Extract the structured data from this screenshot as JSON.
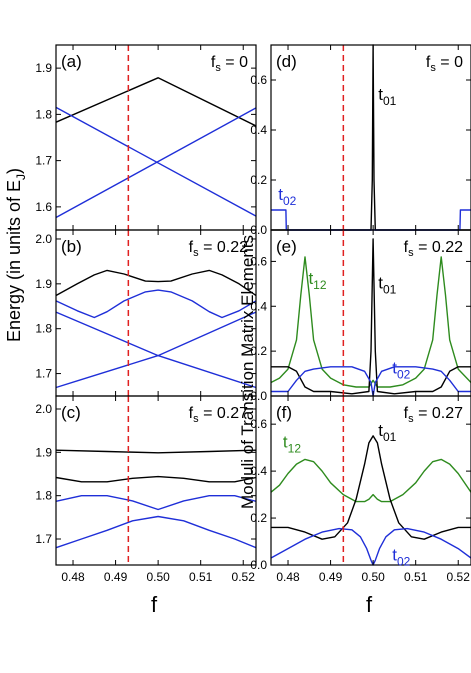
{
  "colors": {
    "black": "#000000",
    "blue": "#1f2fd8",
    "green": "#2e8b1e",
    "red": "#e02020"
  },
  "figure": {
    "left_ylabel": "Energy (in units of E",
    "left_ylabel_sub": "J",
    "left_ylabel_close": ")",
    "right_ylabel": "Moduli of Transition Matrix Elements",
    "xlabel_left": "f",
    "xlabel_right": "f"
  },
  "chart_data": [
    {
      "type": "line",
      "panel": "(a)",
      "fs_label": "f",
      "fs_sub": "s",
      "fs_value": " = 0",
      "xlim": [
        0.476,
        0.523
      ],
      "ylim": [
        1.55,
        1.95
      ],
      "yticks": [
        "1.6",
        "1.7",
        "1.8",
        "1.9"
      ],
      "ytick_values": [
        1.6,
        1.7,
        1.8,
        1.9
      ],
      "xticks": [],
      "xtick_values": [
        0.48,
        0.49,
        0.5,
        0.51,
        0.52
      ],
      "vline_x": 0.493,
      "series": [
        {
          "color": "black",
          "x": [
            0.476,
            0.5,
            0.523
          ],
          "y": [
            1.783,
            1.879,
            1.775
          ]
        },
        {
          "color": "blue",
          "x": [
            0.476,
            0.523
          ],
          "y": [
            1.815,
            1.58
          ]
        },
        {
          "color": "blue",
          "x": [
            0.476,
            0.523
          ],
          "y": [
            1.577,
            1.814
          ]
        }
      ]
    },
    {
      "type": "line",
      "panel": "(b)",
      "fs_label": "f",
      "fs_sub": "s",
      "fs_value": " = 0.22",
      "xlim": [
        0.476,
        0.523
      ],
      "ylim": [
        1.65,
        2.02
      ],
      "yticks": [
        "1.7",
        "1.8",
        "1.9",
        "2.0"
      ],
      "ytick_values": [
        1.7,
        1.8,
        1.9,
        2.0
      ],
      "xticks": [],
      "xtick_values": [
        0.48,
        0.49,
        0.5,
        0.51,
        0.52
      ],
      "vline_x": 0.493,
      "series": [
        {
          "color": "black",
          "x": [
            0.476,
            0.481,
            0.485,
            0.488,
            0.492,
            0.497,
            0.5,
            0.503,
            0.508,
            0.512,
            0.515,
            0.519,
            0.523
          ],
          "y": [
            1.874,
            1.9,
            1.92,
            1.93,
            1.922,
            1.906,
            1.905,
            1.906,
            1.922,
            1.93,
            1.92,
            1.9,
            1.874
          ]
        },
        {
          "color": "blue",
          "x": [
            0.476,
            0.481,
            0.485,
            0.488,
            0.492,
            0.497,
            0.5,
            0.503,
            0.508,
            0.512,
            0.515,
            0.519,
            0.523
          ],
          "y": [
            1.862,
            1.84,
            1.825,
            1.838,
            1.862,
            1.882,
            1.886,
            1.882,
            1.862,
            1.838,
            1.825,
            1.84,
            1.862
          ]
        },
        {
          "color": "blue",
          "x": [
            0.476,
            0.5,
            0.523
          ],
          "y": [
            1.837,
            1.74,
            1.669
          ]
        },
        {
          "color": "blue",
          "x": [
            0.476,
            0.5,
            0.523
          ],
          "y": [
            1.669,
            1.74,
            1.837
          ]
        }
      ]
    },
    {
      "type": "line",
      "panel": "(c)",
      "fs_label": "f",
      "fs_sub": "s",
      "fs_value": " = 0.27",
      "xlim": [
        0.476,
        0.523
      ],
      "ylim": [
        1.64,
        2.03
      ],
      "yticks": [
        "1.7",
        "1.8",
        "1.9",
        "2.0"
      ],
      "ytick_values": [
        1.7,
        1.8,
        1.9,
        2.0
      ],
      "xticks": [
        "0.48",
        "0.49",
        "0.50",
        "0.51",
        "0.52"
      ],
      "xtick_values": [
        0.48,
        0.49,
        0.5,
        0.51,
        0.52
      ],
      "vline_x": 0.493,
      "series": [
        {
          "color": "black",
          "x": [
            0.476,
            0.488,
            0.5,
            0.512,
            0.523
          ],
          "y": [
            1.905,
            1.902,
            1.899,
            1.902,
            1.905
          ]
        },
        {
          "color": "black",
          "x": [
            0.476,
            0.482,
            0.488,
            0.494,
            0.5,
            0.506,
            0.512,
            0.518,
            0.523
          ],
          "y": [
            1.842,
            1.832,
            1.832,
            1.84,
            1.844,
            1.84,
            1.832,
            1.832,
            1.842
          ]
        },
        {
          "color": "blue",
          "x": [
            0.476,
            0.482,
            0.488,
            0.494,
            0.5,
            0.506,
            0.512,
            0.518,
            0.523
          ],
          "y": [
            1.787,
            1.8,
            1.8,
            1.788,
            1.768,
            1.788,
            1.8,
            1.8,
            1.787
          ]
        },
        {
          "color": "blue",
          "x": [
            0.476,
            0.482,
            0.488,
            0.494,
            0.5,
            0.506,
            0.512,
            0.518,
            0.523
          ],
          "y": [
            1.68,
            1.7,
            1.72,
            1.742,
            1.752,
            1.742,
            1.72,
            1.7,
            1.68
          ]
        }
      ]
    },
    {
      "type": "line",
      "panel": "(d)",
      "fs_label": "f",
      "fs_sub": "s",
      "fs_value": " = 0",
      "xlim": [
        0.476,
        0.523
      ],
      "ylim": [
        0.0,
        0.74
      ],
      "yticks": [
        "0.0",
        "0.2",
        "0.4",
        "0.6"
      ],
      "ytick_values": [
        0.0,
        0.2,
        0.4,
        0.6
      ],
      "xticks": [],
      "xtick_values": [
        0.48,
        0.49,
        0.5,
        0.51,
        0.52
      ],
      "vline_x": 0.493,
      "series": [
        {
          "color": "black",
          "x": [
            0.476,
            0.4995,
            0.4998,
            0.5,
            0.5002,
            0.5005,
            0.523
          ],
          "y": [
            0.0,
            0.0,
            0.2,
            0.74,
            0.2,
            0.0,
            0.0
          ]
        },
        {
          "color": "blue",
          "x": [
            0.476,
            0.4795,
            0.4796,
            0.5204,
            0.5205,
            0.523
          ],
          "y": [
            0.08,
            0.08,
            0.0,
            0.0,
            0.08,
            0.08
          ]
        }
      ],
      "labels": [
        {
          "base": "t",
          "sub": "01",
          "color": "black",
          "x": 0.5012,
          "y": 0.52
        },
        {
          "base": "t",
          "sub": "02",
          "color": "blue",
          "x": 0.4777,
          "y": 0.12
        }
      ]
    },
    {
      "type": "line",
      "panel": "(e)",
      "fs_label": "f",
      "fs_sub": "s",
      "fs_value": " = 0.22",
      "xlim": [
        0.476,
        0.523
      ],
      "ylim": [
        0.0,
        0.74
      ],
      "yticks": [
        "0.0",
        "0.2",
        "0.4",
        "0.6"
      ],
      "ytick_values": [
        0.0,
        0.2,
        0.4,
        0.6
      ],
      "xticks": [],
      "xtick_values": [
        0.48,
        0.49,
        0.5,
        0.51,
        0.52
      ],
      "vline_x": 0.493,
      "series": [
        {
          "color": "green",
          "x": [
            0.476,
            0.478,
            0.48,
            0.482,
            0.483,
            0.484,
            0.485,
            0.486,
            0.488,
            0.49,
            0.493,
            0.496,
            0.499,
            0.5,
            0.501,
            0.504,
            0.507,
            0.51,
            0.512,
            0.514,
            0.515,
            0.516,
            0.517,
            0.518,
            0.52,
            0.523
          ],
          "y": [
            0.06,
            0.08,
            0.12,
            0.25,
            0.45,
            0.62,
            0.45,
            0.25,
            0.12,
            0.08,
            0.05,
            0.04,
            0.04,
            0.07,
            0.04,
            0.04,
            0.05,
            0.08,
            0.12,
            0.25,
            0.45,
            0.62,
            0.45,
            0.25,
            0.12,
            0.06
          ]
        },
        {
          "color": "black",
          "x": [
            0.476,
            0.48,
            0.482,
            0.484,
            0.486,
            0.49,
            0.495,
            0.499,
            0.4995,
            0.5,
            0.5005,
            0.501,
            0.505,
            0.51,
            0.514,
            0.516,
            0.518,
            0.52,
            0.523
          ],
          "y": [
            0.13,
            0.13,
            0.11,
            0.04,
            0.02,
            0.02,
            0.01,
            0.02,
            0.2,
            0.7,
            0.2,
            0.02,
            0.01,
            0.02,
            0.02,
            0.04,
            0.11,
            0.13,
            0.13
          ]
        },
        {
          "color": "blue",
          "x": [
            0.476,
            0.48,
            0.482,
            0.484,
            0.486,
            0.49,
            0.495,
            0.498,
            0.4995,
            0.5,
            0.5005,
            0.502,
            0.505,
            0.51,
            0.514,
            0.516,
            0.518,
            0.52,
            0.523
          ],
          "y": [
            0.02,
            0.02,
            0.07,
            0.11,
            0.12,
            0.13,
            0.13,
            0.11,
            0.06,
            0.0,
            0.06,
            0.11,
            0.13,
            0.13,
            0.12,
            0.11,
            0.07,
            0.02,
            0.02
          ]
        }
      ],
      "labels": [
        {
          "base": "t",
          "sub": "12",
          "color": "green",
          "x": 0.4848,
          "y": 0.5
        },
        {
          "base": "t",
          "sub": "01",
          "color": "black",
          "x": 0.5012,
          "y": 0.48
        },
        {
          "base": "t",
          "sub": "02",
          "color": "blue",
          "x": 0.5045,
          "y": 0.1
        }
      ]
    },
    {
      "type": "line",
      "panel": "(f)",
      "fs_label": "f",
      "fs_sub": "s",
      "fs_value": " = 0.27",
      "xlim": [
        0.476,
        0.523
      ],
      "ylim": [
        0.0,
        0.72
      ],
      "yticks": [
        "0.0",
        "0.2",
        "0.4",
        "0.6"
      ],
      "ytick_values": [
        0.0,
        0.2,
        0.4,
        0.6
      ],
      "xticks": [
        "0.48",
        "0.49",
        "0.50",
        "0.51",
        "0.52"
      ],
      "xtick_values": [
        0.48,
        0.49,
        0.5,
        0.51,
        0.52
      ],
      "vline_x": 0.493,
      "series": [
        {
          "color": "green",
          "x": [
            0.476,
            0.478,
            0.48,
            0.482,
            0.484,
            0.486,
            0.488,
            0.49,
            0.493,
            0.496,
            0.498,
            0.499,
            0.5,
            0.501,
            0.502,
            0.504,
            0.507,
            0.51,
            0.512,
            0.514,
            0.516,
            0.518,
            0.52,
            0.523
          ],
          "y": [
            0.31,
            0.34,
            0.39,
            0.43,
            0.45,
            0.44,
            0.4,
            0.35,
            0.3,
            0.27,
            0.27,
            0.28,
            0.3,
            0.28,
            0.27,
            0.27,
            0.3,
            0.35,
            0.4,
            0.44,
            0.45,
            0.43,
            0.39,
            0.31
          ]
        },
        {
          "color": "black",
          "x": [
            0.476,
            0.48,
            0.484,
            0.488,
            0.491,
            0.494,
            0.496,
            0.498,
            0.499,
            0.5,
            0.501,
            0.502,
            0.504,
            0.506,
            0.509,
            0.512,
            0.516,
            0.52,
            0.523
          ],
          "y": [
            0.16,
            0.16,
            0.14,
            0.11,
            0.12,
            0.18,
            0.28,
            0.43,
            0.52,
            0.55,
            0.52,
            0.43,
            0.28,
            0.18,
            0.12,
            0.11,
            0.14,
            0.16,
            0.16
          ]
        },
        {
          "color": "blue",
          "x": [
            0.476,
            0.48,
            0.484,
            0.488,
            0.492,
            0.495,
            0.497,
            0.4985,
            0.4995,
            0.5,
            0.5005,
            0.5015,
            0.503,
            0.505,
            0.508,
            0.512,
            0.516,
            0.52,
            0.523
          ],
          "y": [
            0.03,
            0.07,
            0.11,
            0.14,
            0.155,
            0.15,
            0.12,
            0.07,
            0.02,
            0.0,
            0.02,
            0.07,
            0.12,
            0.15,
            0.155,
            0.14,
            0.11,
            0.07,
            0.03
          ]
        }
      ],
      "labels": [
        {
          "base": "t",
          "sub": "12",
          "color": "green",
          "x": 0.4788,
          "y": 0.5
        },
        {
          "base": "t",
          "sub": "01",
          "color": "black",
          "x": 0.5012,
          "y": 0.55
        },
        {
          "base": "t",
          "sub": "02",
          "color": "blue",
          "x": 0.5045,
          "y": 0.02
        }
      ]
    }
  ]
}
